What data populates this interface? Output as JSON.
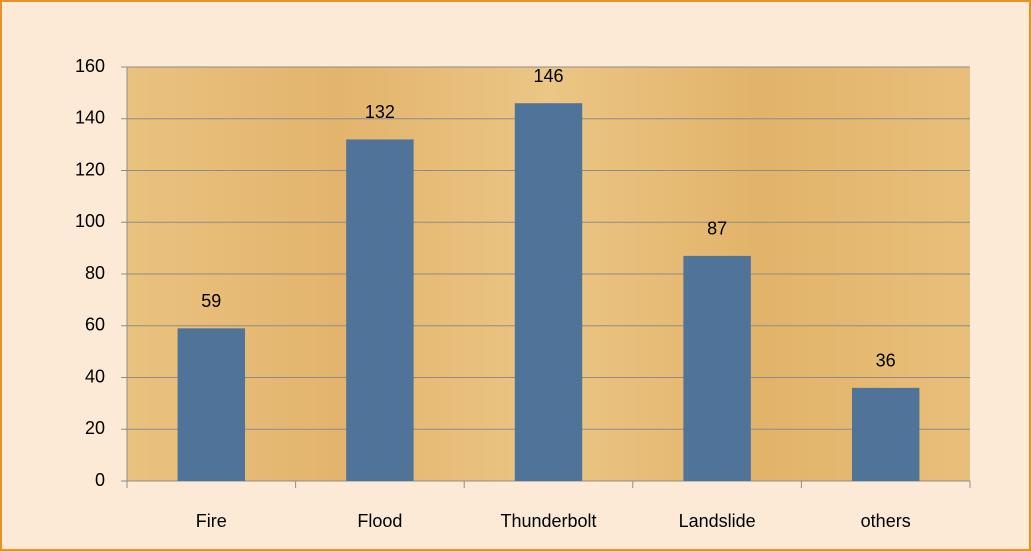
{
  "chart_data": {
    "type": "bar",
    "categories": [
      "Fire",
      "Flood",
      "Thunderbolt",
      "Landslide",
      "others"
    ],
    "values": [
      59,
      132,
      146,
      87,
      36
    ],
    "color": "#4f7399",
    "ylim": [
      0,
      160
    ],
    "yticks": [
      0,
      20,
      40,
      60,
      80,
      100,
      120,
      140,
      160
    ],
    "grid": true,
    "data_labels": true
  }
}
